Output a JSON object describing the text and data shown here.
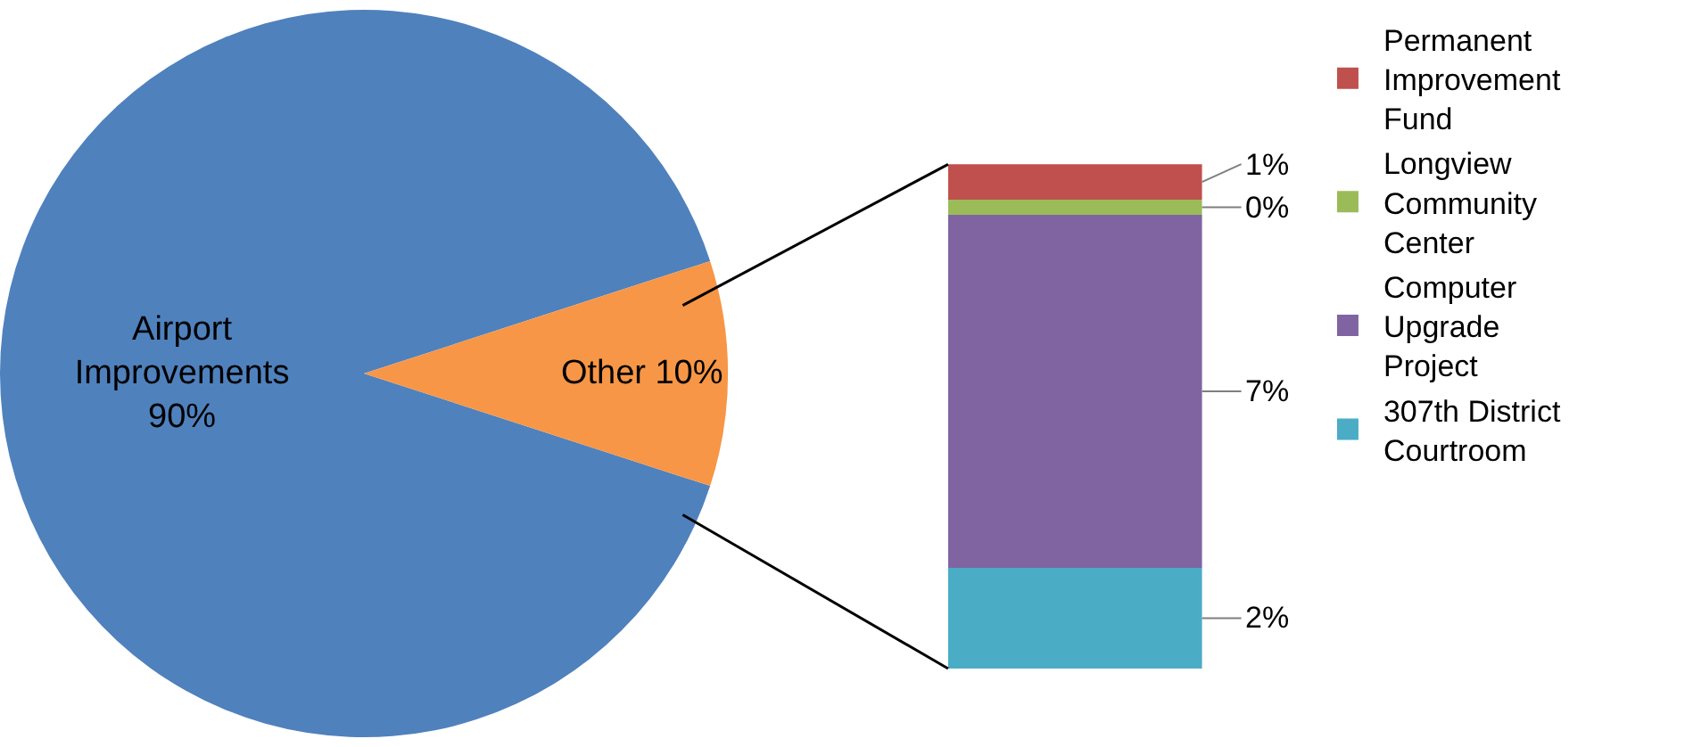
{
  "chart_data": [
    {
      "type": "pie",
      "categories": [
        "Airport Improvements",
        "Other"
      ],
      "values": [
        90,
        10
      ],
      "colors": [
        "#4f81bd",
        "#f79646"
      ],
      "value_labels": [
        "90%",
        "10%"
      ]
    },
    {
      "type": "bar",
      "stacked": true,
      "legend": "right",
      "categories": [
        null
      ],
      "series": [
        {
          "name": "307th District Courtroom",
          "color": "#4bacc6",
          "values": [
            2
          ],
          "value_labels": [
            "2%"
          ]
        },
        {
          "name": "Computer Upgrade Project",
          "color": "#8064a2",
          "values": [
            7
          ],
          "value_labels": [
            "7%"
          ]
        },
        {
          "name": "Longview Community Center",
          "color": "#9bbb59",
          "values": [
            0.3
          ],
          "value_labels": [
            "0%"
          ]
        },
        {
          "name": "Permanent Improvement Fund",
          "color": "#c0504d",
          "values": [
            0.7
          ],
          "value_labels": [
            "1%"
          ]
        }
      ]
    }
  ]
}
